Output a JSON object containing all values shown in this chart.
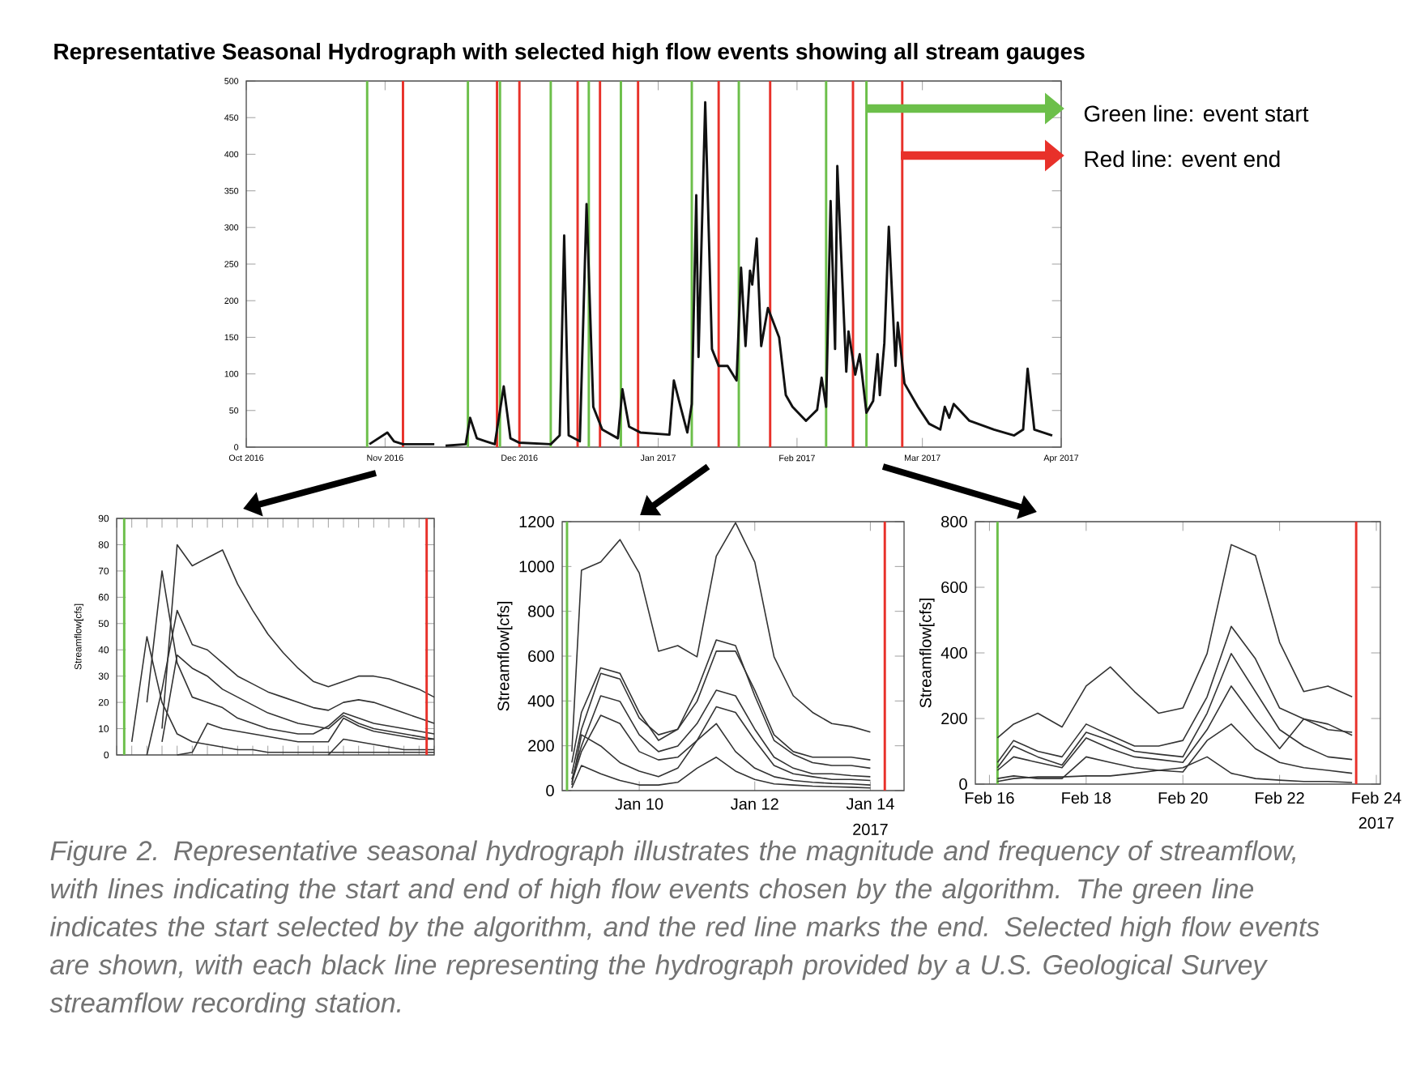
{
  "chart_data": [
    {
      "type": "line",
      "title": "Representative Seasonal Hydrograph with selected high flow events showing all stream gauges",
      "annotations": [
        "Green line: event start",
        "Red line: event end",
        "Figure 2. Representative seasonal hydrograph illustrates the magnitude and frequency of streamflow, with lines indicating the start and end of high flow events chosen by the algorithm. The green line indicates the start selected by the algorithm, and the red line marks the end. Selected high flow events are shown, with each black line representing the hydrograph provided by a U.S. Geological Survey streamflow recording station."
      ],
      "x": [
        "2016-10-28T12:00",
        "2016-11-01T12:00",
        "2016-11-03",
        "2016-11-05",
        "2016-11-12",
        "2016-11-13",
        "2016-11-14T12:00",
        "2016-11-19",
        "2016-11-20",
        "2016-11-21T12:00",
        "2016-11-23T12:00",
        "2016-11-25T12:00",
        "2016-11-27T12:00",
        "2016-11-29",
        "2016-12-01",
        "2016-12-08",
        "2016-12-10",
        "2016-12-11",
        "2016-12-12",
        "2016-12-14T12:00",
        "2016-12-16",
        "2016-12-17T12:00",
        "2016-12-19T12:00",
        "2016-12-23",
        "2016-12-24",
        "2016-12-25T12:00",
        "2016-12-28",
        "2017-01-03T12:00",
        "2017-01-04T12:00",
        "2017-01-06",
        "2017-01-07T12:00",
        "2017-01-08T12:00",
        "2017-01-09T12:00",
        "2017-01-10",
        "2017-01-11T12:00",
        "2017-01-13",
        "2017-01-14T12:00",
        "2017-01-16T12:00",
        "2017-01-18T12:00",
        "2017-01-19T12:00",
        "2017-01-20T12:00",
        "2017-01-21T12:00",
        "2017-01-22",
        "2017-01-23",
        "2017-01-24",
        "2017-01-25T12:00",
        "2017-01-28",
        "2017-01-29T12:00",
        "2017-01-31",
        "2017-02-03",
        "2017-02-05T12:00",
        "2017-02-06T12:00",
        "2017-02-07T12:00",
        "2017-02-08T12:00",
        "2017-02-09T12:00",
        "2017-02-10",
        "2017-02-12",
        "2017-02-12T12:00",
        "2017-02-14",
        "2017-02-15",
        "2017-02-16T12:00",
        "2017-02-18",
        "2017-02-19",
        "2017-02-19T12:00",
        "2017-02-20T12:00",
        "2017-02-21T12:00",
        "2017-02-23",
        "2017-02-23T12:00",
        "2017-02-25",
        "2017-02-28",
        "2017-03-02T12:00",
        "2017-03-05",
        "2017-03-06",
        "2017-03-07",
        "2017-03-08",
        "2017-03-11T12:00",
        "2017-03-17",
        "2017-03-21T12:00",
        "2017-03-23T12:00",
        "2017-03-24T12:00",
        "2017-03-26",
        "2017-03-30"
      ],
      "series": [
        {
          "color": "#111111",
          "values": [
            4,
            20,
            8,
            4,
            4,
            null,
            2,
            4,
            40,
            12,
            8,
            4,
            83,
            12,
            6,
            4,
            16,
            289,
            16,
            8,
            332,
            55,
            24,
            12,
            79,
            28,
            20,
            17,
            91,
            55,
            20,
            59,
            344,
            123,
            471,
            134,
            111,
            111,
            91,
            245,
            138,
            241,
            222,
            285,
            138,
            190,
            150,
            71,
            55,
            36,
            51,
            95,
            55,
            336,
            134,
            384,
            103,
            158,
            99,
            127,
            47,
            63,
            127,
            71,
            142,
            301,
            111,
            170,
            87,
            55,
            32,
            24,
            55,
            40,
            59,
            36,
            24,
            16,
            24,
            107,
            24,
            16
          ]
        }
      ],
      "xlim": [
        "2016-10-01",
        "2017-04-01"
      ],
      "ylim": [
        0,
        500
      ],
      "xticks": [
        {
          "value": "2016-10-01",
          "label": "Oct 2016"
        },
        {
          "value": "2016-11-01",
          "label": "Nov 2016"
        },
        {
          "value": "2016-12-01",
          "label": "Dec 2016"
        },
        {
          "value": "2017-01-01",
          "label": "Jan 2017"
        },
        {
          "value": "2017-02-01",
          "label": "Feb 2017"
        },
        {
          "value": "2017-03-01",
          "label": "Mar 2017"
        },
        {
          "value": "2017-04-01",
          "label": "Apr 2017"
        }
      ],
      "yticks": [
        0,
        50,
        100,
        150,
        200,
        250,
        300,
        350,
        400,
        450,
        500
      ],
      "ref_lines": [
        {
          "axis": "x",
          "value": "2016-10-28",
          "color": "#6cbf4a"
        },
        {
          "axis": "x",
          "value": "2016-11-05",
          "color": "#e8312a"
        },
        {
          "axis": "x",
          "value": "2016-11-19T12:00",
          "color": "#6cbf4a"
        },
        {
          "axis": "x",
          "value": "2016-11-26",
          "color": "#e8312a"
        },
        {
          "axis": "x",
          "value": "2016-11-26T16:00",
          "color": "#6cbf4a"
        },
        {
          "axis": "x",
          "value": "2016-12-01",
          "color": "#e8312a"
        },
        {
          "axis": "x",
          "value": "2016-12-08",
          "color": "#6cbf4a"
        },
        {
          "axis": "x",
          "value": "2016-12-14",
          "color": "#e8312a"
        },
        {
          "axis": "x",
          "value": "2016-12-16T12:00",
          "color": "#6cbf4a"
        },
        {
          "axis": "x",
          "value": "2016-12-19",
          "color": "#e8312a"
        },
        {
          "axis": "x",
          "value": "2016-12-23T16:00",
          "color": "#6cbf4a"
        },
        {
          "axis": "x",
          "value": "2016-12-27T12:00",
          "color": "#e8312a"
        },
        {
          "axis": "x",
          "value": "2017-01-08T12:00",
          "color": "#6cbf4a"
        },
        {
          "axis": "x",
          "value": "2017-01-14T12:00",
          "color": "#e8312a"
        },
        {
          "axis": "x",
          "value": "2017-01-19",
          "color": "#6cbf4a"
        },
        {
          "axis": "x",
          "value": "2017-01-26",
          "color": "#e8312a"
        },
        {
          "axis": "x",
          "value": "2017-02-07T12:00",
          "color": "#6cbf4a"
        },
        {
          "axis": "x",
          "value": "2017-02-13T12:00",
          "color": "#e8312a"
        },
        {
          "axis": "x",
          "value": "2017-02-16T12:00",
          "color": "#6cbf4a"
        },
        {
          "axis": "x",
          "value": "2017-02-24T12:00",
          "color": "#e8312a"
        }
      ]
    },
    {
      "type": "line",
      "ylabel": "Streamflow[cfs]",
      "categories": [
        null,
        null,
        null,
        null,
        null,
        null,
        null,
        null,
        null,
        null,
        null,
        null,
        null,
        null,
        null,
        null,
        null,
        null,
        null,
        null,
        null,
        null
      ],
      "series": [
        {
          "color": "#333333",
          "values": [
            null,
            null,
            null,
            10,
            80,
            72,
            75,
            78,
            65,
            55,
            46,
            39,
            33,
            28,
            26,
            28,
            30,
            30,
            29,
            27,
            25,
            22
          ]
        },
        {
          "color": "#333333",
          "values": [
            null,
            null,
            20,
            70,
            35,
            22,
            20,
            18,
            14,
            12,
            10,
            9,
            8,
            8,
            11,
            16,
            14,
            12,
            11,
            10,
            9,
            8
          ]
        },
        {
          "color": "#333333",
          "values": [
            null,
            5,
            45,
            20,
            8,
            5,
            4,
            3,
            2,
            2,
            1,
            1,
            1,
            1,
            1,
            1,
            1,
            1,
            1,
            1,
            1,
            1
          ]
        },
        {
          "color": "#333333",
          "values": [
            null,
            null,
            0,
            25,
            55,
            42,
            40,
            35,
            30,
            27,
            24,
            22,
            20,
            18,
            17,
            20,
            21,
            20,
            18,
            16,
            14,
            12
          ]
        },
        {
          "color": "#333333",
          "values": [
            null,
            null,
            null,
            5,
            38,
            33,
            30,
            25,
            22,
            19,
            16,
            14,
            12,
            11,
            10,
            15,
            12,
            10,
            9,
            8,
            7,
            6
          ]
        },
        {
          "color": "#333333",
          "values": [
            null,
            null,
            null,
            null,
            0,
            1,
            12,
            10,
            9,
            8,
            7,
            6,
            5,
            5,
            5,
            14,
            11,
            9,
            8,
            7,
            6,
            6
          ]
        },
        {
          "color": "#333333",
          "values": [
            null,
            null,
            null,
            null,
            null,
            null,
            null,
            null,
            null,
            null,
            null,
            null,
            null,
            null,
            0,
            6,
            5,
            4,
            3,
            2,
            2,
            2
          ]
        }
      ],
      "ylim": [
        0,
        90
      ],
      "yticks": [
        0,
        10,
        20,
        30,
        40,
        50,
        60,
        70,
        80,
        90
      ]
    },
    {
      "type": "line",
      "ylabel": "Streamflow[cfs]",
      "annotations": [
        "2017"
      ],
      "x": [
        "2017-01-08T20:00",
        "2017-01-09T00:00",
        "2017-01-09T08:00",
        "2017-01-09T16:00",
        "2017-01-10T00:00",
        "2017-01-10T08:00",
        "2017-01-10T16:00",
        "2017-01-11T00:00",
        "2017-01-11T08:00",
        "2017-01-11T16:00",
        "2017-01-12T00:00",
        "2017-01-12T08:00",
        "2017-01-12T16:00",
        "2017-01-13T00:00",
        "2017-01-13T08:00",
        "2017-01-13T16:00",
        "2017-01-14T00:00"
      ],
      "series": [
        {
          "color": "#333333",
          "values": [
            174,
            983,
            1020,
            1120,
            971,
            622,
            647,
            597,
            1046,
            1195,
            1020,
            597,
            423,
            349,
            299,
            286,
            261
          ]
        },
        {
          "color": "#333333",
          "values": [
            125,
            349,
            548,
            523,
            349,
            224,
            274,
            448,
            672,
            647,
            423,
            224,
            162,
            125,
            112,
            112,
            100
          ]
        },
        {
          "color": "#333333",
          "values": [
            75,
            274,
            523,
            498,
            324,
            249,
            274,
            398,
            622,
            622,
            448,
            249,
            174,
            149,
            149,
            149,
            137
          ]
        },
        {
          "color": "#333333",
          "values": [
            50,
            199,
            423,
            398,
            249,
            174,
            199,
            299,
            448,
            423,
            274,
            149,
            100,
            75,
            75,
            67,
            62
          ]
        },
        {
          "color": "#333333",
          "values": [
            37,
            174,
            336,
            299,
            174,
            137,
            149,
            224,
            374,
            349,
            224,
            112,
            75,
            62,
            50,
            50,
            45
          ]
        },
        {
          "color": "#333333",
          "values": [
            25,
            249,
            199,
            125,
            87,
            62,
            100,
            224,
            299,
            174,
            100,
            62,
            45,
            37,
            32,
            30,
            25
          ]
        },
        {
          "color": "#333333",
          "values": [
            12,
            112,
            75,
            45,
            25,
            25,
            37,
            100,
            149,
            87,
            50,
            30,
            25,
            20,
            17,
            15,
            12
          ]
        }
      ],
      "xlim": [
        "2017-01-08T16:00",
        "2017-01-14T14:00"
      ],
      "ylim": [
        0,
        1200
      ],
      "xticks": [
        {
          "value": "2017-01-10",
          "label": "Jan 10"
        },
        {
          "value": "2017-01-12",
          "label": "Jan 12"
        },
        {
          "value": "2017-01-14",
          "label": "Jan 14"
        }
      ],
      "yticks": [
        0,
        200,
        400,
        600,
        800,
        1000,
        1200
      ],
      "ref_lines": [
        {
          "axis": "x",
          "value": "2017-01-08T18:00",
          "color": "#6cbf4a"
        },
        {
          "axis": "x",
          "value": "2017-01-14T06:00",
          "color": "#e8312a"
        }
      ]
    },
    {
      "type": "line",
      "ylabel": "Streamflow[cfs]",
      "annotations": [
        "2017"
      ],
      "x": [
        "2017-02-16T04:00",
        "2017-02-16T12:00",
        "2017-02-17T00:00",
        "2017-02-17T12:00",
        "2017-02-18T00:00",
        "2017-02-18T12:00",
        "2017-02-19T00:00",
        "2017-02-19T12:00",
        "2017-02-20T00:00",
        "2017-02-20T12:00",
        "2017-02-21T00:00",
        "2017-02-21T12:00",
        "2017-02-22T00:00",
        "2017-02-22T12:00",
        "2017-02-23T00:00",
        "2017-02-23T12:00"
      ],
      "series": [
        {
          "color": "#333333",
          "values": [
            141,
            183,
            216,
            174,
            299,
            357,
            282,
            216,
            232,
            398,
            730,
            697,
            432,
            282,
            299,
            266
          ]
        },
        {
          "color": "#333333",
          "values": [
            66,
            133,
            100,
            83,
            183,
            149,
            116,
            116,
            133,
            266,
            481,
            382,
            232,
            199,
            166,
            158
          ]
        },
        {
          "color": "#333333",
          "values": [
            50,
            116,
            83,
            58,
            158,
            133,
            100,
            91,
            83,
            216,
            398,
            282,
            166,
            116,
            83,
            75
          ]
        },
        {
          "color": "#333333",
          "values": [
            42,
            83,
            66,
            50,
            141,
            108,
            83,
            75,
            66,
            166,
            299,
            199,
            108,
            199,
            183,
            149
          ]
        },
        {
          "color": "#333333",
          "values": [
            17,
            25,
            17,
            17,
            83,
            66,
            50,
            42,
            37,
            133,
            183,
            108,
            66,
            50,
            42,
            33
          ]
        },
        {
          "color": "#333333",
          "values": [
            8,
            17,
            22,
            22,
            25,
            25,
            33,
            42,
            50,
            83,
            33,
            17,
            12,
            8,
            8,
            5
          ]
        }
      ],
      "xlim": [
        "2017-02-15T17:00",
        "2017-02-24T02:00"
      ],
      "ylim": [
        0,
        800
      ],
      "xticks": [
        {
          "value": "2017-02-16",
          "label": "Feb 16"
        },
        {
          "value": "2017-02-18",
          "label": "Feb 18"
        },
        {
          "value": "2017-02-20",
          "label": "Feb 20"
        },
        {
          "value": "2017-02-22",
          "label": "Feb 22"
        },
        {
          "value": "2017-02-24",
          "label": "Feb 24"
        }
      ],
      "yticks": [
        0,
        200,
        400,
        600,
        800
      ],
      "ref_lines": [
        {
          "axis": "x",
          "value": "2017-02-16T04:00",
          "color": "#6cbf4a"
        },
        {
          "axis": "x",
          "value": "2017-02-23T14:00",
          "color": "#e8312a"
        }
      ]
    }
  ]
}
